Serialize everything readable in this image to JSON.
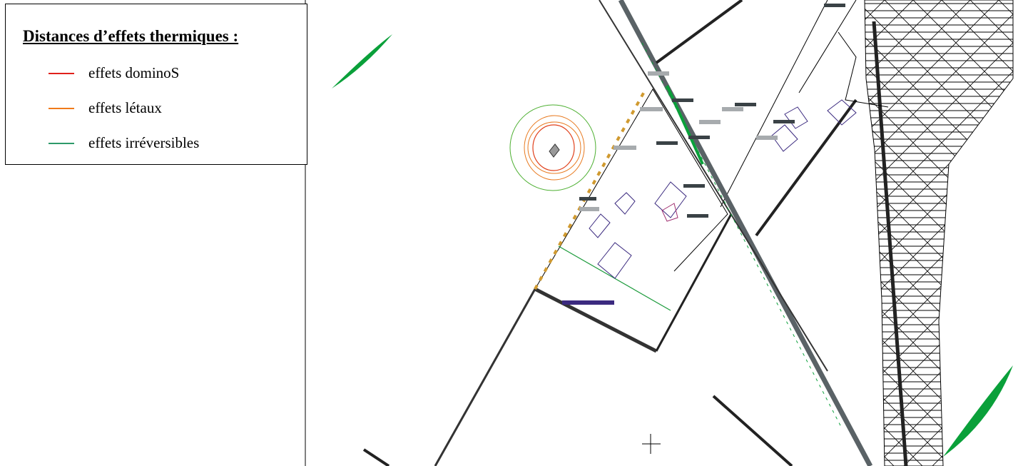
{
  "legend": {
    "title": "Distances d’effets thermiques :",
    "items": [
      {
        "label": "effets dominoS",
        "color": "#e0201b"
      },
      {
        "label": "effets létaux",
        "color": "#f07a1a"
      },
      {
        "label": "effets irréversibles",
        "color": "#2e9a6a"
      }
    ]
  }
}
